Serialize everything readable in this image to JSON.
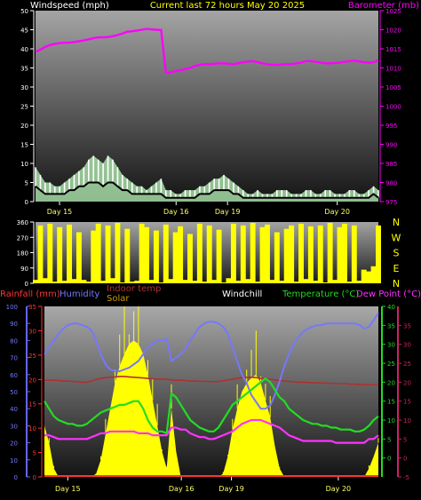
{
  "title": "Current last 72 hours May 20 2025",
  "colors": {
    "background": "#000000",
    "title": "#ffff00",
    "windspeed": "#ffffff",
    "windgust_fill": "#b8f5b8",
    "barometer": "#ff00ff",
    "wind_direction": "#ffff00",
    "rainfall": "#ff3333",
    "humidity": "#7777ff",
    "indoor_temp": "#b03030",
    "solar": "#ffff00",
    "windchill": "#ffffff",
    "temperature": "#22dd22",
    "dew_point": "#ff33ff",
    "solar_axis": "#cc9900",
    "day_label": "#ffff66"
  },
  "chart_data": [
    {
      "type": "line",
      "name": "wind-barometer",
      "left_label": "Windspeed (mph)",
      "right_label": "Barometer (mb)",
      "left_ticks": [
        "0",
        "5",
        "10",
        "15",
        "20",
        "25",
        "30",
        "35",
        "40",
        "45",
        "50"
      ],
      "left_ylim": [
        0,
        50
      ],
      "right_ticks": [
        "975",
        "980",
        "985",
        "990",
        "995",
        "1000",
        "1005",
        "1010",
        "1015",
        "1020",
        "1025"
      ],
      "right_ylim": [
        975,
        1025
      ],
      "day_labels": [
        "Day 15",
        "Day 16",
        "Day 19",
        "Day 20"
      ],
      "series": [
        {
          "name": "Barometer (mb)",
          "axis": "right",
          "values": [
            1014.2,
            1014.8,
            1015.5,
            1016,
            1016.3,
            1016.5,
            1016.6,
            1016.6,
            1016.8,
            1017,
            1017.2,
            1017.5,
            1017.8,
            1018,
            1018,
            1018.1,
            1018.3,
            1018.6,
            1019,
            1019.5,
            1019.6,
            1019.8,
            1020,
            1020.2,
            1020.1,
            1020,
            1019.9,
            1008.7,
            1008.8,
            1009.2,
            1009.4,
            1009.7,
            1010,
            1010.5,
            1010.8,
            1011,
            1011,
            1011.1,
            1011.2,
            1011.2,
            1011.1,
            1011,
            1011.2,
            1011.5,
            1011.7,
            1011.8,
            1011.5,
            1011.2,
            1011,
            1010.8,
            1010.8,
            1010.9,
            1011,
            1011,
            1011.2,
            1011.4,
            1011.8,
            1011.8,
            1011.6,
            1011.4,
            1011.2,
            1011.2,
            1011.3,
            1011.4,
            1011.6,
            1011.8,
            1011.9,
            1011.7,
            1011.5,
            1011.4,
            1011.5,
            1012
          ]
        },
        {
          "name": "Wind gust",
          "axis": "left",
          "values": [
            9,
            7,
            5,
            5,
            4,
            4,
            5,
            6,
            7,
            8,
            9,
            11,
            12,
            11,
            10,
            12,
            11,
            9,
            7,
            6,
            5,
            4,
            4,
            3,
            4,
            5,
            6,
            3,
            3,
            2,
            2,
            3,
            3,
            3,
            4,
            4,
            5,
            6,
            6,
            7,
            6,
            5,
            4,
            3,
            2,
            2,
            3,
            2,
            2,
            2,
            3,
            3,
            3,
            2,
            2,
            2,
            3,
            3,
            2,
            2,
            3,
            3,
            2,
            2,
            2,
            3,
            3,
            2,
            2,
            3,
            4,
            3
          ]
        },
        {
          "name": "Windspeed (mph)",
          "axis": "left",
          "values": [
            4,
            3,
            2,
            2,
            2,
            2,
            2,
            3,
            3,
            4,
            4,
            5,
            5,
            5,
            4,
            5,
            5,
            4,
            3,
            3,
            2,
            2,
            2,
            2,
            2,
            2,
            2,
            1,
            1,
            1,
            1,
            1,
            1,
            1,
            2,
            2,
            2,
            3,
            3,
            3,
            3,
            2,
            2,
            1,
            1,
            1,
            1,
            1,
            1,
            1,
            1,
            1,
            1,
            1,
            1,
            1,
            1,
            1,
            1,
            1,
            1,
            1,
            1,
            1,
            1,
            1,
            1,
            1,
            1,
            1,
            2,
            1
          ]
        }
      ]
    },
    {
      "type": "area",
      "name": "wind-direction",
      "left_ticks": [
        "0",
        "90",
        "180",
        "270",
        "360"
      ],
      "ylim": [
        0,
        360
      ],
      "right_labels": [
        "N",
        "W",
        "S",
        "E",
        "N"
      ],
      "series": [
        {
          "name": "Wind direction",
          "values": [
            20,
            340,
            30,
            350,
            10,
            330,
            15,
            345,
            25,
            300,
            20,
            10,
            310,
            350,
            15,
            340,
            30,
            355,
            5,
            320,
            10,
            15,
            350,
            330,
            20,
            310,
            5,
            345,
            25,
            300,
            335,
            20,
            290,
            15,
            350,
            10,
            340,
            20,
            315,
            5,
            30,
            350,
            15,
            340,
            25,
            355,
            10,
            330,
            345,
            20,
            300,
            15,
            320,
            340,
            10,
            350,
            25,
            335,
            15,
            340,
            5,
            355,
            20,
            330,
            350,
            10,
            340,
            15,
            80,
            70,
            100,
            340
          ]
        }
      ]
    },
    {
      "type": "line",
      "name": "temperature-humidity",
      "legend": [
        "Rainfall (mm)",
        "Humidity",
        "Indoor temp",
        "Solar",
        "Windchill",
        "Temperature (°C)",
        "Dew Point (°C)"
      ],
      "humidity_ticks": [
        "0",
        "10",
        "20",
        "30",
        "40",
        "50",
        "60",
        "70",
        "80",
        "90",
        "100"
      ],
      "humidity_ylim": [
        0,
        100
      ],
      "rainfall_ticks": [
        "0",
        "5",
        "10",
        "15",
        "20",
        "25",
        "30",
        "35"
      ],
      "rainfall_ylim": [
        0,
        35
      ],
      "temp_ticks": [
        "0",
        "5",
        "10",
        "15",
        "20",
        "25",
        "30",
        "35",
        "40"
      ],
      "temp_ylim": [
        -5,
        40
      ],
      "dew_ticks": [
        "-5",
        "0",
        "5",
        "10",
        "15",
        "20",
        "25",
        "30",
        "35"
      ],
      "dew_ylim": [
        -5,
        40
      ],
      "day_labels": [
        "Day 15",
        "Day 16",
        "Day 19",
        "Day 20"
      ],
      "series": [
        {
          "name": "Solar",
          "axis": "percent",
          "values": [
            30,
            20,
            5,
            0,
            0,
            0,
            0,
            0,
            0,
            0,
            0,
            2,
            10,
            25,
            40,
            55,
            65,
            72,
            78,
            80,
            78,
            72,
            60,
            45,
            30,
            15,
            5,
            40,
            15,
            0,
            0,
            0,
            0,
            0,
            0,
            0,
            0,
            0,
            2,
            12,
            28,
            40,
            50,
            55,
            58,
            60,
            55,
            45,
            35,
            18,
            5,
            0,
            0,
            0,
            0,
            0,
            0,
            0,
            0,
            0,
            0,
            0,
            0,
            0,
            0,
            0,
            0,
            0,
            0,
            5,
            12,
            20
          ]
        },
        {
          "name": "Humidity",
          "axis": "humidity",
          "values": [
            72,
            76,
            80,
            84,
            87,
            89,
            90,
            90,
            89,
            88,
            86,
            80,
            72,
            66,
            63,
            62,
            62,
            63,
            64,
            66,
            68,
            72,
            76,
            78,
            80,
            80,
            81,
            68,
            70,
            72,
            75,
            80,
            84,
            88,
            90,
            91,
            91,
            90,
            88,
            84,
            76,
            68,
            60,
            55,
            48,
            44,
            40,
            40,
            42,
            48,
            56,
            65,
            72,
            78,
            82,
            85,
            87,
            88,
            89,
            89,
            90,
            90,
            90,
            90,
            90,
            90,
            90,
            89,
            87,
            88,
            92,
            96
          ]
        },
        {
          "name": "Indoor temp",
          "axis": "temp",
          "values": [
            20.5,
            20.5,
            20.5,
            20.4,
            20.3,
            20.3,
            20.2,
            20.1,
            20,
            20,
            20.3,
            20.7,
            21,
            21.2,
            21.3,
            21.4,
            21.5,
            21.5,
            21.4,
            21.3,
            21.2,
            21.1,
            21,
            20.9,
            20.8,
            20.8,
            20.8,
            20.6,
            20.5,
            20.5,
            20.4,
            20.3,
            20.3,
            20.2,
            20.2,
            20.2,
            20.1,
            20.2,
            20.4,
            20.6,
            20.8,
            21,
            21.2,
            21.3,
            21.3,
            21.2,
            21,
            20.9,
            20.8,
            20.6,
            20.4,
            20.3,
            20.2,
            20.1,
            20,
            20,
            19.9,
            19.9,
            19.8,
            19.8,
            19.7,
            19.7,
            19.6,
            19.6,
            19.6,
            19.5,
            19.5,
            19.4,
            19.4,
            19.3,
            19.3,
            19.3
          ]
        },
        {
          "name": "Temperature (°C)",
          "axis": "temp",
          "values": [
            15,
            13,
            11,
            10,
            9.5,
            9,
            9,
            8.5,
            8.5,
            9,
            10,
            11,
            12,
            12.5,
            13,
            13.5,
            14,
            14,
            14.5,
            15,
            15,
            13,
            10,
            8,
            7,
            7,
            6.5,
            17,
            16,
            14,
            12,
            10,
            9,
            8,
            7.5,
            7,
            7,
            8,
            10,
            12,
            14,
            15,
            16,
            17,
            18,
            19,
            20,
            21,
            20,
            18,
            16,
            15,
            13,
            12,
            11,
            10,
            9.5,
            9,
            9,
            8.5,
            8.5,
            8,
            8,
            7.5,
            7.5,
            7.5,
            7,
            7,
            7.5,
            8.5,
            10,
            11
          ]
        },
        {
          "name": "Dew Point (°C)",
          "axis": "temp",
          "values": [
            6,
            6,
            5.5,
            5,
            5,
            5,
            5,
            5,
            5,
            5,
            5.5,
            6,
            6.5,
            6.5,
            7,
            7,
            7,
            7,
            7,
            7,
            6.5,
            6.5,
            6.5,
            6,
            6,
            6,
            6,
            8,
            8,
            7.5,
            7.5,
            6.5,
            6,
            5.5,
            5.5,
            5,
            5,
            5.5,
            6,
            6.5,
            7,
            8,
            9,
            9.5,
            10,
            10,
            10,
            9.5,
            9,
            8.5,
            8,
            7,
            6,
            5.5,
            5,
            4.5,
            4.5,
            4.5,
            4.5,
            4.5,
            4.5,
            4.5,
            4,
            4,
            4,
            4,
            4,
            4,
            4,
            5,
            5,
            6
          ]
        }
      ]
    }
  ]
}
